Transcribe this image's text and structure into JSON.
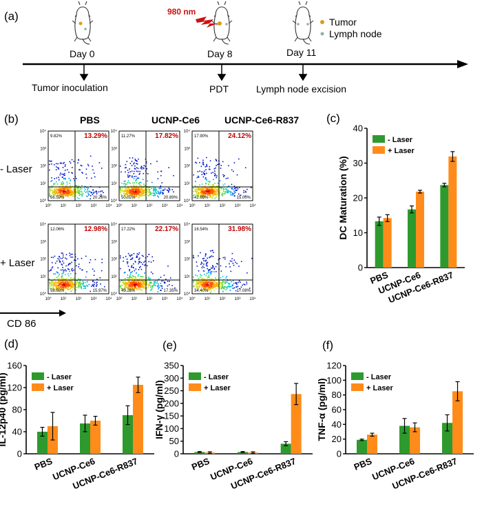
{
  "panel_a": {
    "label": "(a)",
    "laser_label": "980 nm",
    "legend": [
      {
        "label": "Tumor",
        "color": "#d4a017"
      },
      {
        "label": "Lymph node",
        "color": "#8fb0a8"
      }
    ],
    "days": [
      "Day 0",
      "Day 8",
      "Day 11"
    ],
    "events": [
      "Tumor inoculation",
      "PDT",
      "Lymph node excision"
    ]
  },
  "panel_b": {
    "label": "(b)",
    "columns": [
      "PBS",
      "UCNP-Ce6",
      "UCNP-Ce6-R837"
    ],
    "rows": [
      "- Laser",
      "+ Laser"
    ],
    "x_axis_label": "CD 86",
    "tick_labels": [
      "10⁰",
      "10¹",
      "10²",
      "10³",
      "10⁴"
    ],
    "quadrants": [
      [
        {
          "ul": "9.82%",
          "ur": "13.29%",
          "ll": "56.59%",
          "lr": "20.26%"
        },
        {
          "ul": "11.27%",
          "ur": "17.82%",
          "ll": "50.02%",
          "lr": "20.89%"
        },
        {
          "ul": "17.90%",
          "ur": "24.12%",
          "ll": "42.98%",
          "lr": "15.00%"
        }
      ],
      [
        {
          "ul": "12.06%",
          "ur": "12.98%",
          "ll": "58.99%",
          "lr": "15.97%"
        },
        {
          "ul": "17.22%",
          "ur": "22.17%",
          "ll": "43.26%",
          "lr": "17.35%"
        },
        {
          "ul": "16.54%",
          "ur": "31.98%",
          "ll": "34.40%",
          "lr": "17.08%"
        }
      ]
    ]
  },
  "colors": {
    "minus_laser": "#2e9a2e",
    "plus_laser": "#ff8c1a"
  },
  "chart_data": [
    {
      "panel": "(c)",
      "type": "bar",
      "categories": [
        "PBS",
        "UCNP-Ce6",
        "UCNP-Ce6-R837"
      ],
      "ylabel": "DC Maturation (%)",
      "ylim": [
        0,
        40
      ],
      "yticks": [
        0,
        10,
        20,
        30,
        40
      ],
      "legend_position": "top-left",
      "series": [
        {
          "name": "- Laser",
          "values": [
            13.3,
            16.7,
            23.7
          ],
          "errors": [
            1.2,
            1.0,
            0.5
          ]
        },
        {
          "name": "+ Laser",
          "values": [
            14.2,
            21.8,
            31.9
          ],
          "errors": [
            1.0,
            0.4,
            1.4
          ]
        }
      ]
    },
    {
      "panel": "(d)",
      "type": "bar",
      "categories": [
        "PBS",
        "UCNP-Ce6",
        "UCNP-Ce6-R837"
      ],
      "ylabel": "IL-12p40 (pg/ml)",
      "ylim": [
        0,
        160
      ],
      "yticks": [
        0,
        40,
        80,
        120,
        160
      ],
      "legend_position": "top-left",
      "series": [
        {
          "name": "- Laser",
          "values": [
            40,
            55,
            70
          ],
          "errors": [
            8,
            15,
            17
          ]
        },
        {
          "name": "+ Laser",
          "values": [
            50,
            60,
            125
          ],
          "errors": [
            25,
            8,
            14
          ]
        }
      ]
    },
    {
      "panel": "(e)",
      "type": "bar",
      "categories": [
        "PBS",
        "UCNP-Ce6",
        "UCNP-Ce6-R837"
      ],
      "ylabel": "IFN-γ (pg/ml)",
      "ylim": [
        0,
        350
      ],
      "yticks": [
        0,
        50,
        100,
        150,
        200,
        250,
        300,
        350
      ],
      "legend_position": "top-left",
      "series": [
        {
          "name": "- Laser",
          "values": [
            7,
            7,
            40
          ],
          "errors": [
            2,
            2,
            8
          ]
        },
        {
          "name": "+ Laser",
          "values": [
            5,
            5,
            237
          ],
          "errors": [
            3,
            3,
            42
          ]
        }
      ]
    },
    {
      "panel": "(f)",
      "type": "bar",
      "categories": [
        "PBS",
        "UCNP-Ce6",
        "UCNP-Ce6-R837"
      ],
      "ylabel": "TNF-α (pg/ml)",
      "ylim": [
        0,
        120
      ],
      "yticks": [
        0,
        20,
        40,
        60,
        80,
        100,
        120
      ],
      "legend_position": "top-left",
      "series": [
        {
          "name": "- Laser",
          "values": [
            19,
            38,
            42
          ],
          "errors": [
            1,
            10,
            11
          ]
        },
        {
          "name": "+ Laser",
          "values": [
            26,
            36,
            85
          ],
          "errors": [
            2,
            6,
            13
          ]
        }
      ]
    }
  ]
}
